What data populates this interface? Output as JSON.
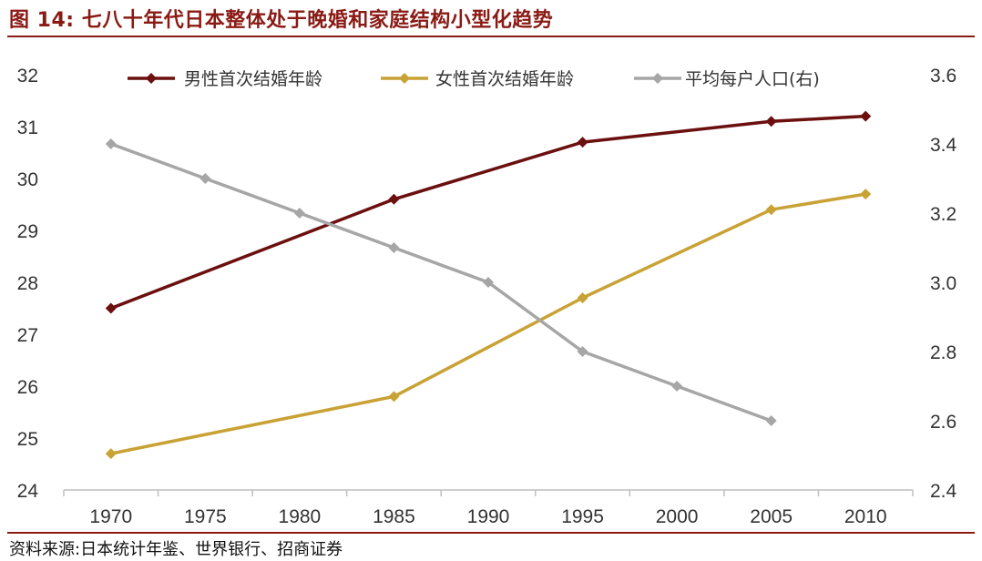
{
  "figure": {
    "title": "图 14:  七八十年代日本整体处于晚婚和家庭结构小型化趋势",
    "source": "资料来源:日本统计年鉴、世界银行、招商证券"
  },
  "colors": {
    "brand": "#8a1a14",
    "male": "#6b0f0f",
    "female": "#c9a235",
    "household": "#a6a6a6"
  },
  "chart_data": {
    "type": "line",
    "x": [
      1970,
      1975,
      1980,
      1985,
      1990,
      1995,
      2000,
      2005,
      2010
    ],
    "x_tick_labels": [
      "1970",
      "1975",
      "1980",
      "1985",
      "1990",
      "1995",
      "2000",
      "2005",
      "2010"
    ],
    "y_left": {
      "range": [
        24,
        32
      ],
      "ticks": [
        "24",
        "25",
        "26",
        "27",
        "28",
        "29",
        "30",
        "31",
        "32"
      ]
    },
    "y_right": {
      "range": [
        2.4,
        3.6
      ],
      "ticks": [
        "2.4",
        "2.6",
        "2.8",
        "3.0",
        "3.2",
        "3.4",
        "3.6"
      ]
    },
    "grid": false,
    "legend_position": "top",
    "series": [
      {
        "name": "男性首次结婚年龄",
        "axis": "left",
        "color": "#6b0f0f",
        "x": [
          1970,
          1985,
          1995,
          2005,
          2010
        ],
        "values": [
          27.5,
          29.6,
          30.7,
          31.1,
          31.2
        ]
      },
      {
        "name": "女性首次结婚年龄",
        "axis": "left",
        "color": "#c9a235",
        "x": [
          1970,
          1985,
          1995,
          2005,
          2010
        ],
        "values": [
          24.7,
          25.8,
          27.7,
          29.4,
          29.7
        ]
      },
      {
        "name": "平均每户人口(右)",
        "axis": "right",
        "color": "#a6a6a6",
        "x": [
          1970,
          1975,
          1980,
          1985,
          1990,
          1995,
          2000,
          2005
        ],
        "values": [
          3.4,
          3.3,
          3.2,
          3.1,
          3.0,
          2.8,
          2.7,
          2.6
        ]
      }
    ]
  }
}
